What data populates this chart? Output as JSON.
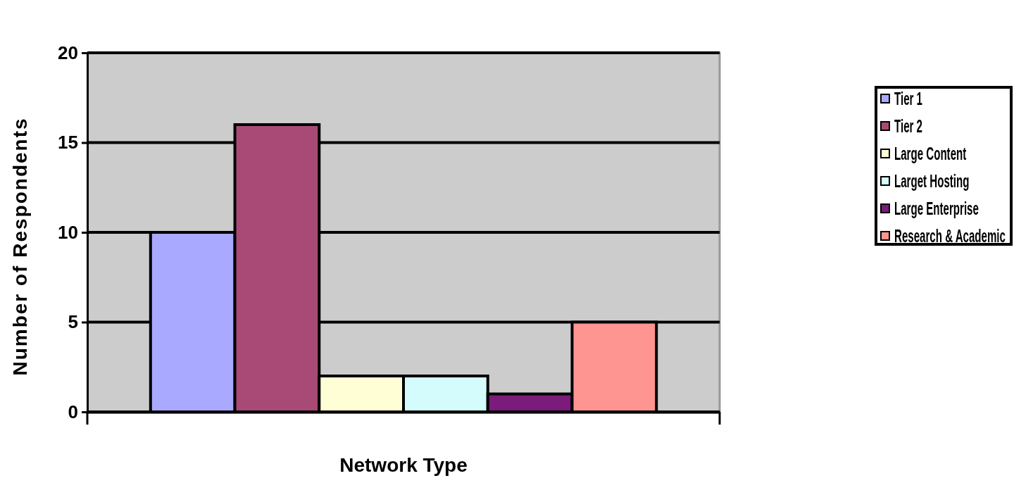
{
  "chart_data": {
    "type": "bar",
    "xlabel": "Network Type",
    "ylabel": "Number of Respondents",
    "categories": [
      null
    ],
    "series": [
      {
        "name": "Tier 1",
        "color": "#a9aaff",
        "values": [
          10
        ]
      },
      {
        "name": "Tier 2",
        "color": "#a94a76",
        "values": [
          16
        ]
      },
      {
        "name": "Large Content",
        "color": "#fffed4",
        "values": [
          2
        ]
      },
      {
        "name": "Larget Hosting",
        "color": "#d5fcfd",
        "values": [
          2
        ]
      },
      {
        "name": "Large Enterprise",
        "color": "#7b1b7c",
        "values": [
          1
        ]
      },
      {
        "name": "Research & Academic",
        "color": "#ff9591",
        "values": [
          5
        ]
      }
    ],
    "ylim": [
      0,
      20
    ],
    "yticks": [
      0,
      5,
      10,
      15,
      20
    ],
    "grid": "y",
    "legend": "right"
  }
}
